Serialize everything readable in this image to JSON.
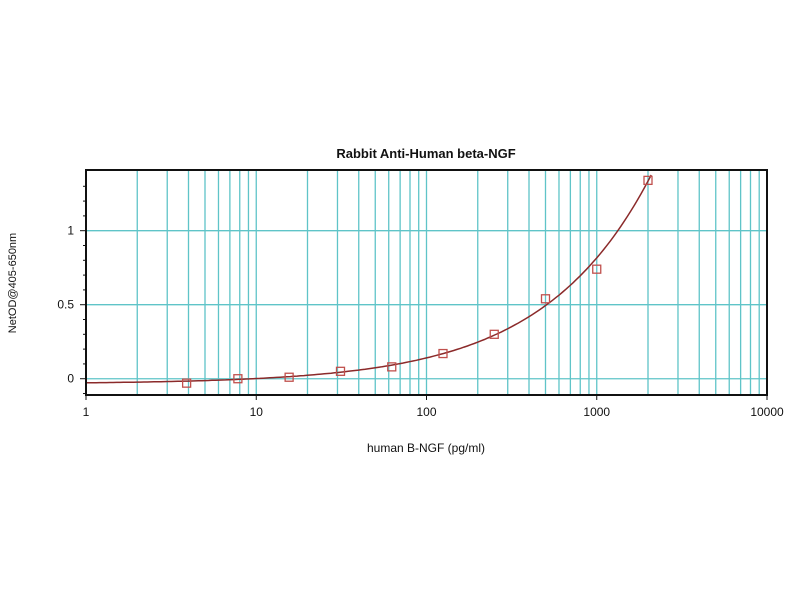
{
  "chart_data": {
    "type": "scatter",
    "title": "Rabbit Anti-Human beta-NGF",
    "xlabel": "human B-NGF (pg/ml)",
    "ylabel": "NetOD@405-650nm",
    "xscale": "log",
    "xlim": [
      1,
      10000
    ],
    "ylim": [
      -0.11,
      1.41
    ],
    "xticks": [
      1,
      10,
      100,
      1000,
      10000
    ],
    "xtick_labels": [
      "1",
      "10",
      "100",
      "1000",
      "10000"
    ],
    "yticks": [
      0,
      0.5,
      1
    ],
    "ytick_labels": [
      "0",
      "0.5",
      "1"
    ],
    "grid": true,
    "series": [
      {
        "marker": "open-square",
        "x": [
          3.9,
          7.8,
          15.6,
          31.25,
          62.5,
          125,
          250,
          500,
          1000,
          2000
        ],
        "y": [
          -0.03,
          0.0,
          0.01,
          0.05,
          0.08,
          0.17,
          0.3,
          0.54,
          0.74,
          1.34
        ]
      }
    ],
    "fit_curve": true,
    "colors": {
      "grid": "#5fc4c8",
      "marker": "#c0504d",
      "curve": "#8b2a2a",
      "axes": "#111111"
    }
  }
}
